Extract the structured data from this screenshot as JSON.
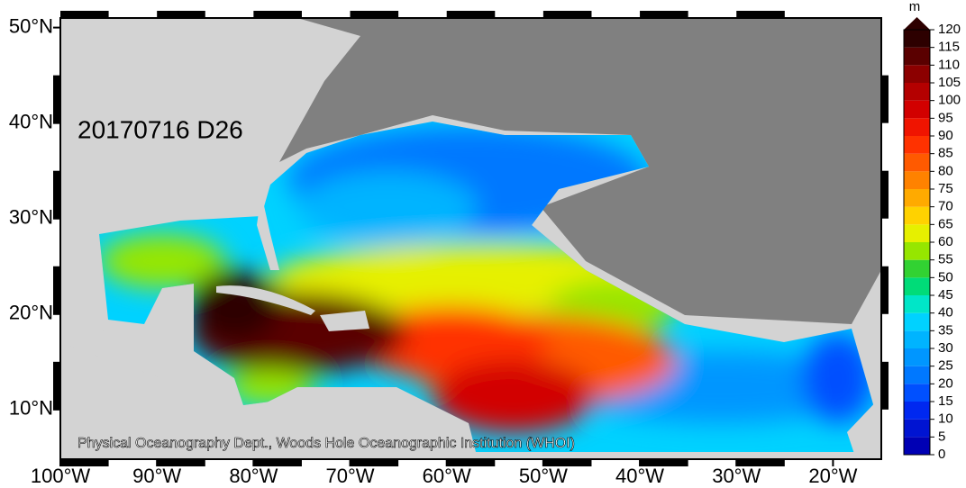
{
  "map": {
    "date_label": "20170716 D26",
    "credit": "Physical Oceanography Dept., Woods Hole Oceanographic Institution (WHOI)",
    "xlim": [
      -100,
      -15
    ],
    "ylim": [
      4.8,
      51
    ],
    "xticks": [
      {
        "value": -100,
        "label": "100°W"
      },
      {
        "value": -90,
        "label": "90°W"
      },
      {
        "value": -80,
        "label": "80°W"
      },
      {
        "value": -70,
        "label": "70°W"
      },
      {
        "value": -60,
        "label": "60°W"
      },
      {
        "value": -50,
        "label": "50°W"
      },
      {
        "value": -40,
        "label": "40°W"
      },
      {
        "value": -30,
        "label": "30°W"
      },
      {
        "value": -20,
        "label": "20°W"
      }
    ],
    "yticks": [
      {
        "value": 10,
        "label": "10°N"
      },
      {
        "value": 20,
        "label": "20°N"
      },
      {
        "value": 30,
        "label": "30°N"
      },
      {
        "value": 40,
        "label": "40°N"
      },
      {
        "value": 50,
        "label": "50°N"
      }
    ]
  },
  "colorbar": {
    "unit": "m",
    "lim": [
      0,
      120
    ],
    "ticks": [
      0,
      5,
      10,
      15,
      20,
      25,
      30,
      35,
      40,
      45,
      50,
      55,
      60,
      65,
      70,
      75,
      80,
      85,
      90,
      95,
      100,
      105,
      110,
      115,
      120
    ],
    "colors": [
      "#0000b4",
      "#0014d2",
      "#0028f0",
      "#0050ff",
      "#0078ff",
      "#0096ff",
      "#00b4ff",
      "#00d2ff",
      "#00e6c8",
      "#00dc78",
      "#32d232",
      "#96e600",
      "#e6f000",
      "#ffd200",
      "#ffaa00",
      "#ff8200",
      "#ff5a00",
      "#ff3200",
      "#f01400",
      "#d20000",
      "#b40000",
      "#8c0000",
      "#5a0000",
      "#2d0000"
    ]
  }
}
